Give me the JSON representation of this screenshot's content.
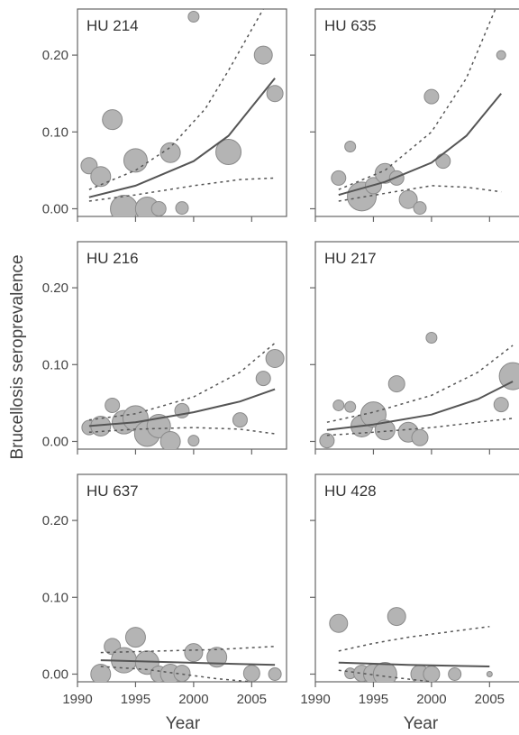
{
  "ylabel": "Brucellosis seroprevalence",
  "xlabel": "Year",
  "chart_data": [
    {
      "type": "scatter",
      "title": "HU 214",
      "xlim": [
        1990,
        2008
      ],
      "ylim": [
        -0.01,
        0.26
      ],
      "yticks": [
        0.0,
        0.1,
        0.2
      ],
      "xticks": [
        1990,
        1995,
        2000,
        2005
      ],
      "points": [
        {
          "x": 1991,
          "y": 0.056,
          "size": 9
        },
        {
          "x": 1992,
          "y": 0.042,
          "size": 11
        },
        {
          "x": 1993,
          "y": 0.116,
          "size": 11
        },
        {
          "x": 1994,
          "y": 0.0,
          "size": 15
        },
        {
          "x": 1995,
          "y": 0.063,
          "size": 13
        },
        {
          "x": 1996,
          "y": 0.0,
          "size": 13
        },
        {
          "x": 1997,
          "y": 0.0,
          "size": 8
        },
        {
          "x": 1998,
          "y": 0.073,
          "size": 11
        },
        {
          "x": 1999,
          "y": 0.001,
          "size": 7
        },
        {
          "x": 2000,
          "y": 0.25,
          "size": 6
        },
        {
          "x": 2003,
          "y": 0.074,
          "size": 14
        },
        {
          "x": 2006,
          "y": 0.2,
          "size": 10
        },
        {
          "x": 2007,
          "y": 0.15,
          "size": 9
        }
      ],
      "fit": {
        "x": [
          1991,
          1995,
          2000,
          2003,
          2007
        ],
        "y": [
          0.015,
          0.03,
          0.062,
          0.095,
          0.17
        ]
      },
      "upper": {
        "x": [
          1991,
          1995,
          1998,
          2001,
          2003,
          2006
        ],
        "y": [
          0.025,
          0.05,
          0.08,
          0.13,
          0.18,
          0.26
        ]
      },
      "lower": {
        "x": [
          1991,
          1995,
          2000,
          2004,
          2007
        ],
        "y": [
          0.01,
          0.018,
          0.03,
          0.038,
          0.04
        ]
      }
    },
    {
      "type": "scatter",
      "title": "HU 635",
      "xlim": [
        1990,
        2008
      ],
      "ylim": [
        -0.01,
        0.26
      ],
      "yticks": [
        0.0,
        0.1,
        0.2
      ],
      "xticks": [
        1990,
        1995,
        2000,
        2005
      ],
      "points": [
        {
          "x": 1992,
          "y": 0.04,
          "size": 8
        },
        {
          "x": 1993,
          "y": 0.081,
          "size": 6
        },
        {
          "x": 1994,
          "y": 0.016,
          "size": 16
        },
        {
          "x": 1995,
          "y": 0.03,
          "size": 9
        },
        {
          "x": 1996,
          "y": 0.046,
          "size": 11
        },
        {
          "x": 1997,
          "y": 0.04,
          "size": 8
        },
        {
          "x": 1998,
          "y": 0.012,
          "size": 10
        },
        {
          "x": 1999,
          "y": 0.001,
          "size": 7
        },
        {
          "x": 2000,
          "y": 0.146,
          "size": 8
        },
        {
          "x": 2001,
          "y": 0.062,
          "size": 8
        },
        {
          "x": 2006,
          "y": 0.2,
          "size": 5
        }
      ],
      "fit": {
        "x": [
          1992,
          1996,
          2000,
          2003,
          2006
        ],
        "y": [
          0.018,
          0.035,
          0.06,
          0.095,
          0.15
        ]
      },
      "upper": {
        "x": [
          1992,
          1996,
          2000,
          2003,
          2005.5
        ],
        "y": [
          0.025,
          0.05,
          0.1,
          0.17,
          0.26
        ]
      },
      "lower": {
        "x": [
          1992,
          1996,
          2000,
          2003,
          2006
        ],
        "y": [
          0.01,
          0.02,
          0.03,
          0.028,
          0.022
        ]
      }
    },
    {
      "type": "scatter",
      "title": "HU 216",
      "xlim": [
        1990,
        2008
      ],
      "ylim": [
        -0.01,
        0.26
      ],
      "yticks": [
        0.0,
        0.1,
        0.2
      ],
      "xticks": [
        1990,
        1995,
        2000,
        2005
      ],
      "points": [
        {
          "x": 1991,
          "y": 0.018,
          "size": 8
        },
        {
          "x": 1992,
          "y": 0.02,
          "size": 11
        },
        {
          "x": 1993,
          "y": 0.047,
          "size": 8
        },
        {
          "x": 1994,
          "y": 0.025,
          "size": 13
        },
        {
          "x": 1995,
          "y": 0.03,
          "size": 14
        },
        {
          "x": 1996,
          "y": 0.01,
          "size": 14
        },
        {
          "x": 1997,
          "y": 0.02,
          "size": 13
        },
        {
          "x": 1998,
          "y": 0.0,
          "size": 11
        },
        {
          "x": 1999,
          "y": 0.04,
          "size": 8
        },
        {
          "x": 2000,
          "y": 0.001,
          "size": 6
        },
        {
          "x": 2004,
          "y": 0.028,
          "size": 8
        },
        {
          "x": 2006,
          "y": 0.082,
          "size": 8
        },
        {
          "x": 2007,
          "y": 0.108,
          "size": 10
        }
      ],
      "fit": {
        "x": [
          1991,
          1995,
          2000,
          2004,
          2007
        ],
        "y": [
          0.02,
          0.025,
          0.038,
          0.052,
          0.068
        ]
      },
      "upper": {
        "x": [
          1991,
          1995,
          2000,
          2004,
          2007
        ],
        "y": [
          0.028,
          0.036,
          0.058,
          0.09,
          0.128
        ]
      },
      "lower": {
        "x": [
          1991,
          1995,
          2000,
          2004,
          2007
        ],
        "y": [
          0.012,
          0.016,
          0.018,
          0.016,
          0.01
        ]
      }
    },
    {
      "type": "scatter",
      "title": "HU 217",
      "xlim": [
        1990,
        2008
      ],
      "ylim": [
        -0.01,
        0.26
      ],
      "yticks": [
        0.0,
        0.1,
        0.2
      ],
      "xticks": [
        1990,
        1995,
        2000,
        2005
      ],
      "points": [
        {
          "x": 1991,
          "y": 0.001,
          "size": 8
        },
        {
          "x": 1992,
          "y": 0.047,
          "size": 6
        },
        {
          "x": 1993,
          "y": 0.045,
          "size": 6
        },
        {
          "x": 1994,
          "y": 0.02,
          "size": 12
        },
        {
          "x": 1995,
          "y": 0.035,
          "size": 14
        },
        {
          "x": 1996,
          "y": 0.015,
          "size": 11
        },
        {
          "x": 1997,
          "y": 0.075,
          "size": 9
        },
        {
          "x": 1998,
          "y": 0.012,
          "size": 11
        },
        {
          "x": 1999,
          "y": 0.005,
          "size": 9
        },
        {
          "x": 2000,
          "y": 0.135,
          "size": 6
        },
        {
          "x": 2006,
          "y": 0.048,
          "size": 8
        },
        {
          "x": 2007,
          "y": 0.085,
          "size": 15
        }
      ],
      "fit": {
        "x": [
          1991,
          1995,
          2000,
          2004,
          2007
        ],
        "y": [
          0.015,
          0.022,
          0.035,
          0.055,
          0.078
        ]
      },
      "upper": {
        "x": [
          1991,
          1995,
          2000,
          2004,
          2007
        ],
        "y": [
          0.025,
          0.038,
          0.06,
          0.09,
          0.125
        ]
      },
      "lower": {
        "x": [
          1991,
          1995,
          2000,
          2004,
          2007
        ],
        "y": [
          0.008,
          0.012,
          0.018,
          0.025,
          0.03
        ]
      }
    },
    {
      "type": "scatter",
      "title": "HU 637",
      "xlim": [
        1990,
        2008
      ],
      "ylim": [
        -0.01,
        0.26
      ],
      "yticks": [
        0.0,
        0.1,
        0.2
      ],
      "xticks": [
        1990,
        1995,
        2000,
        2005
      ],
      "points": [
        {
          "x": 1992,
          "y": 0.0,
          "size": 11
        },
        {
          "x": 1993,
          "y": 0.036,
          "size": 9
        },
        {
          "x": 1994,
          "y": 0.018,
          "size": 14
        },
        {
          "x": 1995,
          "y": 0.048,
          "size": 11
        },
        {
          "x": 1996,
          "y": 0.015,
          "size": 13
        },
        {
          "x": 1997,
          "y": 0.0,
          "size": 9
        },
        {
          "x": 1998,
          "y": 0.0,
          "size": 11
        },
        {
          "x": 1999,
          "y": 0.001,
          "size": 9
        },
        {
          "x": 2000,
          "y": 0.028,
          "size": 10
        },
        {
          "x": 2002,
          "y": 0.022,
          "size": 11
        },
        {
          "x": 2005,
          "y": 0.001,
          "size": 9
        },
        {
          "x": 2007,
          "y": 0.0,
          "size": 7
        }
      ],
      "fit": {
        "x": [
          1992,
          1997,
          2002,
          2007
        ],
        "y": [
          0.018,
          0.016,
          0.014,
          0.012
        ]
      },
      "upper": {
        "x": [
          1992,
          1997,
          2002,
          2007
        ],
        "y": [
          0.028,
          0.03,
          0.032,
          0.036
        ]
      },
      "lower": {
        "x": [
          1992,
          1996,
          1999,
          2002,
          2005
        ],
        "y": [
          0.01,
          0.006,
          0.0,
          -0.006,
          -0.01
        ]
      }
    },
    {
      "type": "scatter",
      "title": "HU 428",
      "xlim": [
        1990,
        2008
      ],
      "ylim": [
        -0.01,
        0.26
      ],
      "yticks": [
        0.0,
        0.1,
        0.2
      ],
      "xticks": [
        1990,
        1995,
        2000,
        2005
      ],
      "points": [
        {
          "x": 1992,
          "y": 0.066,
          "size": 10
        },
        {
          "x": 1993,
          "y": 0.001,
          "size": 6
        },
        {
          "x": 1994,
          "y": 0.001,
          "size": 9
        },
        {
          "x": 1995,
          "y": 0.0,
          "size": 11
        },
        {
          "x": 1996,
          "y": 0.0,
          "size": 13
        },
        {
          "x": 1997,
          "y": 0.075,
          "size": 10
        },
        {
          "x": 1999,
          "y": 0.0,
          "size": 10
        },
        {
          "x": 2000,
          "y": 0.0,
          "size": 9
        },
        {
          "x": 2002,
          "y": 0.0,
          "size": 7
        },
        {
          "x": 2005,
          "y": 0.0,
          "size": 3
        }
      ],
      "fit": {
        "x": [
          1992,
          1998,
          2005
        ],
        "y": [
          0.015,
          0.012,
          0.01
        ]
      },
      "upper": {
        "x": [
          1992,
          1995,
          1998,
          2002,
          2005
        ],
        "y": [
          0.03,
          0.04,
          0.048,
          0.056,
          0.062
        ]
      },
      "lower": {
        "x": [
          1992,
          1996,
          2000
        ],
        "y": [
          0.005,
          -0.003,
          -0.01
        ]
      }
    }
  ]
}
